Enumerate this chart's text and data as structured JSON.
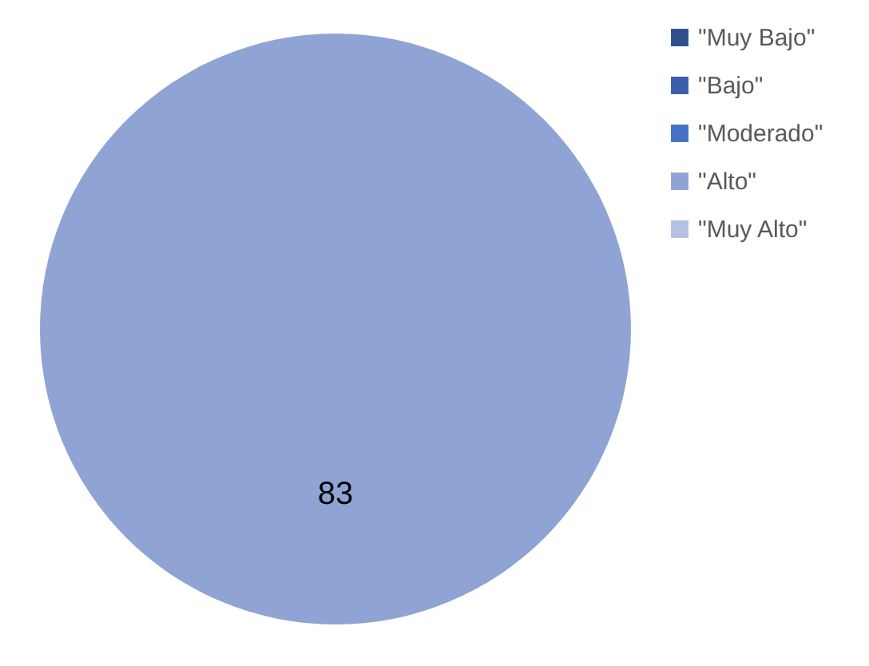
{
  "chart_data": {
    "type": "pie",
    "categories": [
      "\"Muy Bajo\"",
      "\"Bajo\"",
      "\"Moderado\"",
      "\"Alto\"",
      "\"Muy Alto\""
    ],
    "values": [
      0,
      0,
      0,
      83,
      0
    ],
    "colors": [
      "#2f4f8f",
      "#3a5ea8",
      "#4472c4",
      "#8fa4d4",
      "#b4c1e4"
    ],
    "value_labels": [
      null,
      null,
      null,
      "83",
      null
    ],
    "legend": "right"
  }
}
